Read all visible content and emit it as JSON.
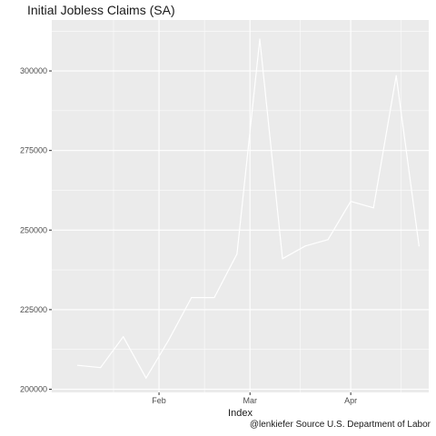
{
  "chart_data": {
    "type": "line",
    "title": "Initial Jobless Claims (SA)",
    "xlabel": "Index",
    "ylabel": "",
    "caption": "@lenkiefer Source U.S. Department of Labor",
    "x": [
      "2017-01-07",
      "2017-01-14",
      "2017-01-21",
      "2017-01-28",
      "2017-02-04",
      "2017-02-11",
      "2017-02-18",
      "2017-02-25",
      "2017-03-04",
      "2017-03-11",
      "2017-03-18",
      "2017-03-25",
      "2017-04-01",
      "2017-04-08",
      "2017-04-15",
      "2017-04-22"
    ],
    "series": [
      {
        "values": [
          207500,
          206800,
          216500,
          203500,
          215500,
          228800,
          228800,
          242500,
          310000,
          241000,
          245000,
          247000,
          259000,
          257000,
          298500,
          245000
        ]
      }
    ],
    "x_ticks": [
      {
        "label": "Feb",
        "date": "2017-02-01"
      },
      {
        "label": "Mar",
        "date": "2017-03-01"
      },
      {
        "label": "Apr",
        "date": "2017-04-01"
      }
    ],
    "x_range": [
      "2016-12-30",
      "2017-04-25"
    ],
    "y_ticks": [
      200000,
      225000,
      250000,
      275000,
      300000
    ],
    "ylim": [
      199000,
      316000
    ],
    "grid": true,
    "legend": "none",
    "colors": {
      "panel": "#ebebeb",
      "grid": "#ffffff",
      "line": "#ffffff"
    }
  }
}
